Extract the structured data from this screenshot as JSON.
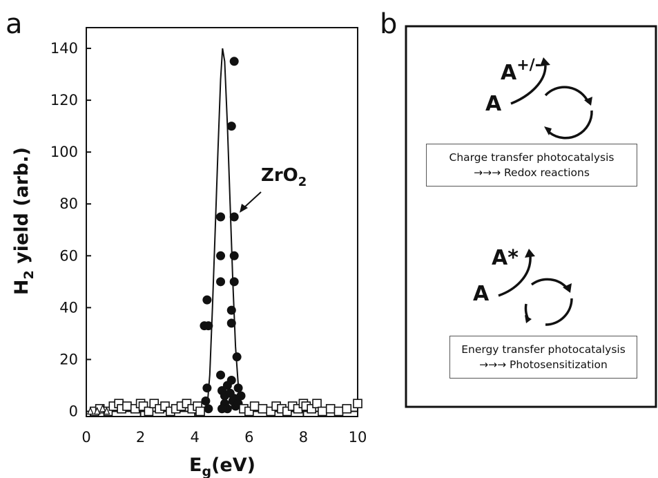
{
  "panels": {
    "a": {
      "letter": "a"
    },
    "b": {
      "letter": "b",
      "top": {
        "species": "A",
        "product": "A",
        "product_sup": "+/-",
        "caption_line1": "Charge transfer photocatalysis",
        "caption_line2": "→→→ Redox reactions"
      },
      "bottom": {
        "species": "A",
        "product": "A*",
        "caption_line1": "Energy transfer photocatalysis",
        "caption_line2": "→→→ Photosensitization"
      }
    }
  },
  "chart_data": {
    "type": "scatter",
    "title": "",
    "xlabel_main": "E",
    "xlabel_sub": "g",
    "xlabel_rest": "(eV)",
    "ylabel_main": "H",
    "ylabel_sub": "2",
    "ylabel_rest": " yield (arb.)",
    "xlim": [
      0,
      10
    ],
    "ylim": [
      -2,
      148
    ],
    "xticks": [
      0,
      2,
      4,
      6,
      8,
      10
    ],
    "yticks": [
      0,
      20,
      40,
      60,
      80,
      100,
      120,
      140
    ],
    "grid": false,
    "annotation": {
      "main": "ZrO",
      "sub": "2",
      "target_x": 5.5,
      "target_y": 76
    },
    "series": [
      {
        "marker": "filled-circle",
        "points": [
          [
            5.45,
            135
          ],
          [
            5.35,
            110
          ],
          [
            4.95,
            75
          ],
          [
            5.45,
            75
          ],
          [
            4.95,
            60
          ],
          [
            5.45,
            60
          ],
          [
            4.95,
            50
          ],
          [
            5.45,
            50
          ],
          [
            4.45,
            43
          ],
          [
            4.35,
            33
          ],
          [
            4.5,
            33
          ],
          [
            5.35,
            39
          ],
          [
            5.35,
            34
          ],
          [
            5.55,
            21
          ],
          [
            4.45,
            9
          ],
          [
            4.4,
            4
          ],
          [
            4.5,
            1
          ],
          [
            4.95,
            14
          ],
          [
            5.0,
            8
          ],
          [
            5.1,
            6
          ],
          [
            5.2,
            10
          ],
          [
            5.3,
            7
          ],
          [
            5.4,
            4
          ],
          [
            5.5,
            2
          ],
          [
            5.6,
            9
          ],
          [
            5.1,
            3
          ],
          [
            5.2,
            1
          ],
          [
            5.35,
            12
          ],
          [
            5.45,
            5
          ],
          [
            5.6,
            3
          ],
          [
            5.7,
            6
          ],
          [
            5.0,
            1
          ]
        ]
      },
      {
        "marker": "open-square",
        "points": [
          [
            0.3,
            0
          ],
          [
            0.5,
            1
          ],
          [
            0.8,
            0
          ],
          [
            1.0,
            2
          ],
          [
            1.2,
            3
          ],
          [
            1.3,
            1
          ],
          [
            1.5,
            2
          ],
          [
            1.8,
            1
          ],
          [
            2.0,
            3
          ],
          [
            2.1,
            2
          ],
          [
            2.3,
            0
          ],
          [
            2.5,
            3
          ],
          [
            2.7,
            1
          ],
          [
            2.9,
            2
          ],
          [
            3.1,
            0
          ],
          [
            3.3,
            1
          ],
          [
            3.5,
            2
          ],
          [
            3.7,
            3
          ],
          [
            3.9,
            1
          ],
          [
            4.1,
            2
          ],
          [
            4.2,
            0
          ],
          [
            5.8,
            1
          ],
          [
            6.0,
            0
          ],
          [
            6.2,
            2
          ],
          [
            6.5,
            1
          ],
          [
            6.8,
            0
          ],
          [
            7.0,
            2
          ],
          [
            7.2,
            1
          ],
          [
            7.4,
            0
          ],
          [
            7.6,
            2
          ],
          [
            7.8,
            1
          ],
          [
            8.0,
            3
          ],
          [
            8.1,
            2
          ],
          [
            8.3,
            1
          ],
          [
            8.5,
            3
          ],
          [
            8.7,
            0
          ],
          [
            9.0,
            1
          ],
          [
            9.3,
            0
          ],
          [
            9.6,
            1
          ],
          [
            10.0,
            3
          ]
        ]
      },
      {
        "marker": "small-triangle",
        "points": [
          [
            0.15,
            0
          ],
          [
            0.4,
            0
          ],
          [
            0.6,
            1
          ],
          [
            0.75,
            0
          ]
        ]
      }
    ],
    "fit_curve": {
      "points": [
        [
          0.0,
          0
        ],
        [
          0.5,
          0
        ],
        [
          1.0,
          0
        ],
        [
          2.0,
          0
        ],
        [
          3.0,
          0
        ],
        [
          4.0,
          0
        ],
        [
          4.45,
          1
        ],
        [
          4.55,
          14
        ],
        [
          4.65,
          40
        ],
        [
          4.75,
          70
        ],
        [
          4.85,
          100
        ],
        [
          4.95,
          128
        ],
        [
          5.02,
          140
        ],
        [
          5.1,
          135
        ],
        [
          5.2,
          110
        ],
        [
          5.3,
          80
        ],
        [
          5.4,
          50
        ],
        [
          5.5,
          25
        ],
        [
          5.6,
          10
        ],
        [
          5.7,
          3
        ],
        [
          5.8,
          0
        ],
        [
          6.0,
          0
        ],
        [
          7.0,
          0
        ],
        [
          8.0,
          0
        ],
        [
          9.0,
          0
        ],
        [
          10.0,
          0
        ]
      ]
    }
  }
}
